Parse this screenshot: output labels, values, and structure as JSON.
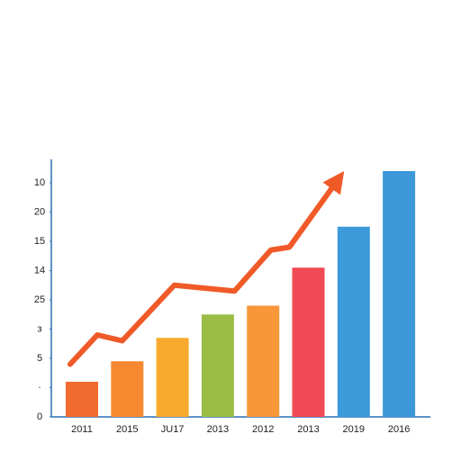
{
  "chart_data": {
    "type": "bar",
    "categories": [
      "2011",
      "2015",
      "JU17",
      "2013",
      "2012",
      "2013",
      "2019",
      "2016"
    ],
    "values": [
      1.2,
      1.9,
      2.7,
      3.5,
      3.8,
      5.1,
      6.5,
      8.4
    ],
    "colors": [
      "#f26b2f",
      "#f6892f",
      "#f8aa2e",
      "#9cbd45",
      "#f7973a",
      "#ef4a55",
      "#3c9ad9",
      "#3d98d8"
    ],
    "ylim": [
      0,
      8.8
    ],
    "yticks": [
      {
        "value": 0,
        "label": "0"
      },
      {
        "value": 1,
        "label": "·"
      },
      {
        "value": 2,
        "label": "5"
      },
      {
        "value": 3,
        "label": "з"
      },
      {
        "value": 4,
        "label": "25"
      },
      {
        "value": 5,
        "label": "14"
      },
      {
        "value": 6,
        "label": "15"
      },
      {
        "value": 7,
        "label": "20"
      },
      {
        "value": 8,
        "label": "10"
      }
    ],
    "trend": {
      "color": "#f05a28",
      "x": [
        -0.26,
        0.34,
        0.89,
        2.04,
        3.37,
        4.17,
        4.58,
        5.79
      ],
      "values": [
        1.8,
        2.8,
        2.6,
        4.5,
        4.3,
        5.7,
        5.8,
        8.4
      ]
    }
  }
}
